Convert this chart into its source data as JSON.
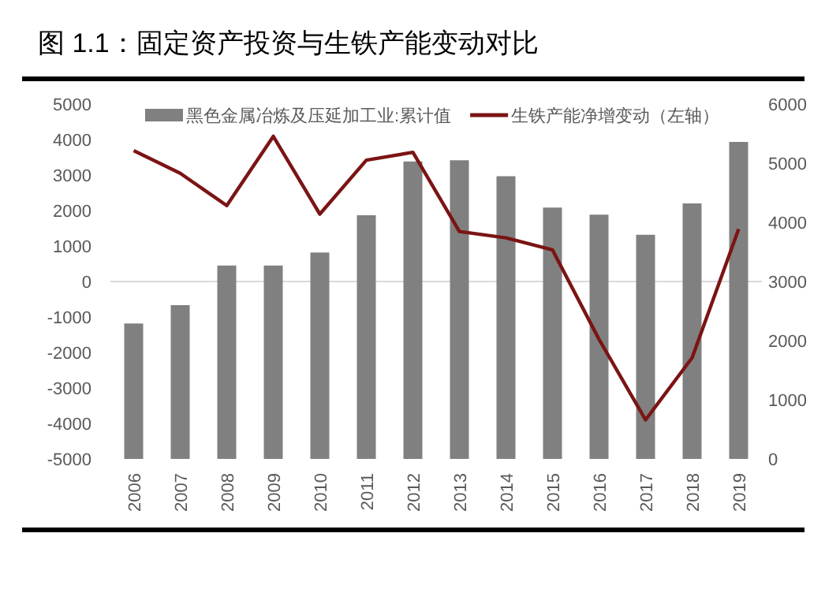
{
  "chart_data": {
    "type": "bar",
    "title": "图 1.1：固定资产投资与生铁产能变动对比",
    "categories": [
      "2006",
      "2007",
      "2008",
      "2009",
      "2010",
      "2011",
      "2012",
      "2013",
      "2014",
      "2015",
      "2016",
      "2017",
      "2018",
      "2019"
    ],
    "series": [
      {
        "name": "黑色金属冶炼及压延加工业:累计值",
        "axis": "y2",
        "color": "#808080",
        "values": [
          2290,
          2600,
          3270,
          3270,
          3490,
          4120,
          5030,
          5050,
          4780,
          4250,
          4130,
          3790,
          4320,
          5360
        ]
      },
      {
        "name": "生铁产能净增变动（左轴）",
        "type": "line",
        "color": "#7b1414",
        "values": [
          3690,
          3050,
          2140,
          4090,
          1900,
          3420,
          3640,
          1410,
          1230,
          890,
          -1630,
          -3900,
          -2150,
          1480
        ]
      }
    ],
    "ylim": [
      -5000,
      5000
    ],
    "yticks": [
      -5000,
      -4000,
      -3000,
      -2000,
      -1000,
      0,
      1000,
      2000,
      3000,
      4000,
      5000
    ],
    "y2lim": [
      0,
      6000
    ],
    "y2ticks": [
      0,
      1000,
      2000,
      3000,
      4000,
      5000,
      6000
    ],
    "ref_lines": [
      {
        "axis": "y",
        "value": 0,
        "color": "#d9d9d9"
      }
    ],
    "legend": "top"
  }
}
